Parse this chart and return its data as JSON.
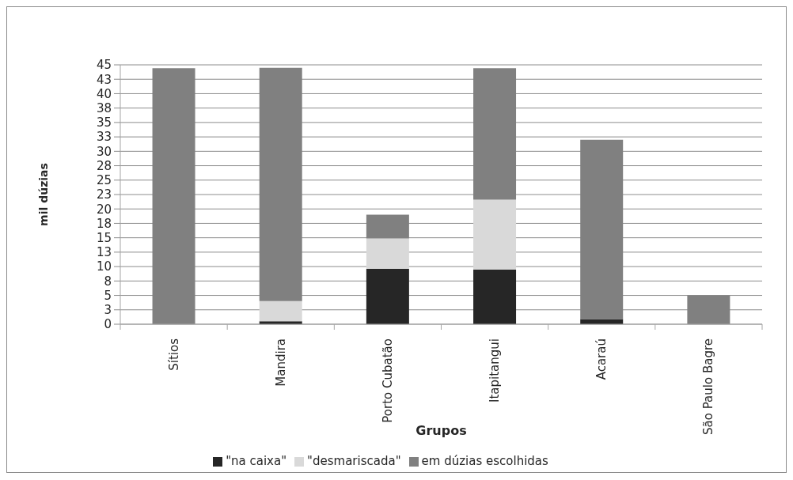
{
  "chart_data": {
    "type": "bar",
    "stacked": true,
    "categories": [
      "Sítios",
      "Mandira",
      "Porto Cubatão",
      "Itapitangui",
      "Acaraú",
      "São Paulo Bagre"
    ],
    "series": [
      {
        "name": "\"na caixa\"",
        "color": "#262626",
        "values": [
          0,
          0.5,
          9.6,
          9.5,
          0.9,
          0
        ]
      },
      {
        "name": "\"desmariscada\"",
        "color": "#d9d9d9",
        "values": [
          0,
          3.5,
          5.3,
          12.1,
          0,
          0
        ]
      },
      {
        "name": "em dúzias escolhidas",
        "color": "#808080",
        "values": [
          44.4,
          40.5,
          4.1,
          22.8,
          31.1,
          5.0
        ]
      }
    ],
    "xlabel": "Grupos",
    "ylabel": "mil dúzias",
    "ylim": [
      0,
      45
    ],
    "yticks": [
      0,
      {
        "value": 2.5,
        "label": "3"
      },
      5,
      {
        "value": 7.5,
        "label": "8"
      },
      10,
      {
        "value": 12.5,
        "label": "13"
      },
      15,
      {
        "value": 17.5,
        "label": "18"
      },
      20,
      {
        "value": 22.5,
        "label": "23"
      },
      25,
      {
        "value": 27.5,
        "label": "28"
      },
      30,
      {
        "value": 32.5,
        "label": "33"
      },
      35,
      {
        "value": 37.5,
        "label": "38"
      },
      40,
      {
        "value": 42.5,
        "label": "43"
      },
      45
    ],
    "grid": "y",
    "legend": "bottom"
  }
}
